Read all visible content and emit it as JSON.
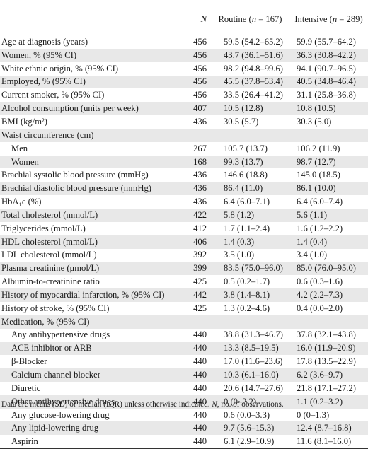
{
  "table": {
    "headers": {
      "label": "",
      "n": "N",
      "routine_label": "Routine (",
      "routine_n_symbol": "n",
      "routine_n_value": " = 167)",
      "intensive_label": "Intensive (",
      "intensive_n_symbol": "n",
      "intensive_n_value": " = 289)"
    },
    "rows": [
      {
        "label": "Age at diagnosis (years)",
        "n": "456",
        "routine": "59.5 (54.2–65.2)",
        "intensive": "59.9 (55.7–64.2)",
        "indent": false,
        "shaded": false
      },
      {
        "label": "Women, % (95% CI)",
        "n": "456",
        "routine": "43.7 (36.1–51.6)",
        "intensive": "36.3 (30.8–42.2)",
        "indent": false,
        "shaded": true
      },
      {
        "label": "White ethnic origin, % (95% CI)",
        "n": "456",
        "routine": "98.2 (94.8–99.6)",
        "intensive": "94.1 (90.7–96.5)",
        "indent": false,
        "shaded": false
      },
      {
        "label": "Employed, % (95% CI)",
        "n": "456",
        "routine": "45.5 (37.8–53.4)",
        "intensive": "40.5 (34.8–46.4)",
        "indent": false,
        "shaded": true
      },
      {
        "label": "Current smoker, % (95% CI)",
        "n": "456",
        "routine": "33.5 (26.4–41.2)",
        "intensive": "31.1 (25.8–36.8)",
        "indent": false,
        "shaded": false
      },
      {
        "label": "Alcohol consumption (units per week)",
        "n": "407",
        "routine": "10.5 (12.8)",
        "intensive": "10.8 (10.5)",
        "indent": false,
        "shaded": true
      },
      {
        "label": "BMI (kg/m²)",
        "n": "436",
        "routine": "30.5 (5.7)",
        "intensive": "30.3 (5.0)",
        "indent": false,
        "shaded": false
      },
      {
        "label": "Waist circumference (cm)",
        "n": "",
        "routine": "",
        "intensive": "",
        "indent": false,
        "shaded": true
      },
      {
        "label": "Men",
        "n": "267",
        "routine": "105.7 (13.7)",
        "intensive": "106.2 (11.9)",
        "indent": true,
        "shaded": false
      },
      {
        "label": "Women",
        "n": "168",
        "routine": "99.3 (13.7)",
        "intensive": "98.7 (12.7)",
        "indent": true,
        "shaded": true
      },
      {
        "label": "Brachial systolic blood pressure (mmHg)",
        "n": "436",
        "routine": "146.6 (18.8)",
        "intensive": "145.0 (18.5)",
        "indent": false,
        "shaded": false
      },
      {
        "label": "Brachial diastolic blood pressure (mmHg)",
        "n": "436",
        "routine": "86.4 (11.0)",
        "intensive": "86.1 (10.0)",
        "indent": false,
        "shaded": true
      },
      {
        "label": "HbA₁c (%)",
        "n": "436",
        "routine": "6.4 (6.0–7.1)",
        "intensive": "6.4 (6.0–7.4)",
        "indent": false,
        "shaded": false
      },
      {
        "label": "Total cholesterol (mmol/L)",
        "n": "422",
        "routine": "5.8 (1.2)",
        "intensive": "5.6 (1.1)",
        "indent": false,
        "shaded": true
      },
      {
        "label": "Triglycerides (mmol/L)",
        "n": "412",
        "routine": "1.7 (1.1–2.4)",
        "intensive": "1.6 (1.2–2.2)",
        "indent": false,
        "shaded": false
      },
      {
        "label": "HDL cholesterol (mmol/L)",
        "n": "406",
        "routine": "1.4 (0.3)",
        "intensive": "1.4 (0.4)",
        "indent": false,
        "shaded": true
      },
      {
        "label": "LDL cholesterol (mmol/L)",
        "n": "392",
        "routine": "3.5 (1.0)",
        "intensive": "3.4 (1.0)",
        "indent": false,
        "shaded": false
      },
      {
        "label": "Plasma creatinine (μmol/L)",
        "n": "399",
        "routine": "83.5 (75.0–96.0)",
        "intensive": "85.0 (76.0–95.0)",
        "indent": false,
        "shaded": true
      },
      {
        "label": "Albumin-to-creatinine ratio",
        "n": "425",
        "routine": "0.5 (0.2–1.7)",
        "intensive": "0.6 (0.3–1.6)",
        "indent": false,
        "shaded": false
      },
      {
        "label": "History of myocardial infarction, % (95% CI)",
        "n": "442",
        "routine": "3.8 (1.4–8.1)",
        "intensive": "4.2 (2.2–7.3)",
        "indent": false,
        "shaded": true
      },
      {
        "label": "History of stroke, % (95% CI)",
        "n": "425",
        "routine": "1.3 (0.2–4.6)",
        "intensive": "0.4 (0.0–2.0)",
        "indent": false,
        "shaded": false
      },
      {
        "label": "Medication, % (95% CI)",
        "n": "",
        "routine": "",
        "intensive": "",
        "indent": false,
        "shaded": true
      },
      {
        "label": "Any antihypertensive drugs",
        "n": "440",
        "routine": "38.8 (31.3–46.7)",
        "intensive": "37.8 (32.1–43.8)",
        "indent": true,
        "shaded": false
      },
      {
        "label": "ACE inhibitor or ARB",
        "n": "440",
        "routine": "13.3 (8.5–19.5)",
        "intensive": "16.0 (11.9–20.9)",
        "indent": true,
        "shaded": true
      },
      {
        "label": "β-Blocker",
        "n": "440",
        "routine": "17.0 (11.6–23.6)",
        "intensive": "17.8 (13.5–22.9)",
        "indent": true,
        "shaded": false
      },
      {
        "label": "Calcium channel blocker",
        "n": "440",
        "routine": "10.3 (6.1–16.0)",
        "intensive": "6.2 (3.6–9.7)",
        "indent": true,
        "shaded": true
      },
      {
        "label": "Diuretic",
        "n": "440",
        "routine": "20.6 (14.7–27.6)",
        "intensive": "21.8 (17.1–27.2)",
        "indent": true,
        "shaded": false
      },
      {
        "label": "Other antihypertensive drugs",
        "n": "440",
        "routine": "0 (0–2.2)",
        "intensive": "1.1 (0.2–3.2)",
        "indent": true,
        "shaded": true
      },
      {
        "label": "Any glucose-lowering drug",
        "n": "440",
        "routine": "0.6 (0.0–3.3)",
        "intensive": "0 (0–1.3)",
        "indent": true,
        "shaded": false
      },
      {
        "label": "Any lipid-lowering drug",
        "n": "440",
        "routine": "9.7 (5.6–15.3)",
        "intensive": "12.4 (8.7–16.8)",
        "indent": true,
        "shaded": true
      },
      {
        "label": "Aspirin",
        "n": "440",
        "routine": "6.1 (2.9–10.9)",
        "intensive": "11.6 (8.1–16.0)",
        "indent": true,
        "shaded": false
      }
    ]
  },
  "footnote": {
    "text_before": "Data are means (SD) or median (IQR) unless otherwise indicated. ",
    "n_symbol": "N",
    "text_after": ", no. of observations."
  },
  "colors": {
    "row_shade": "#e8e8e8",
    "rule": "#333333",
    "text": "#1a1a1a"
  }
}
